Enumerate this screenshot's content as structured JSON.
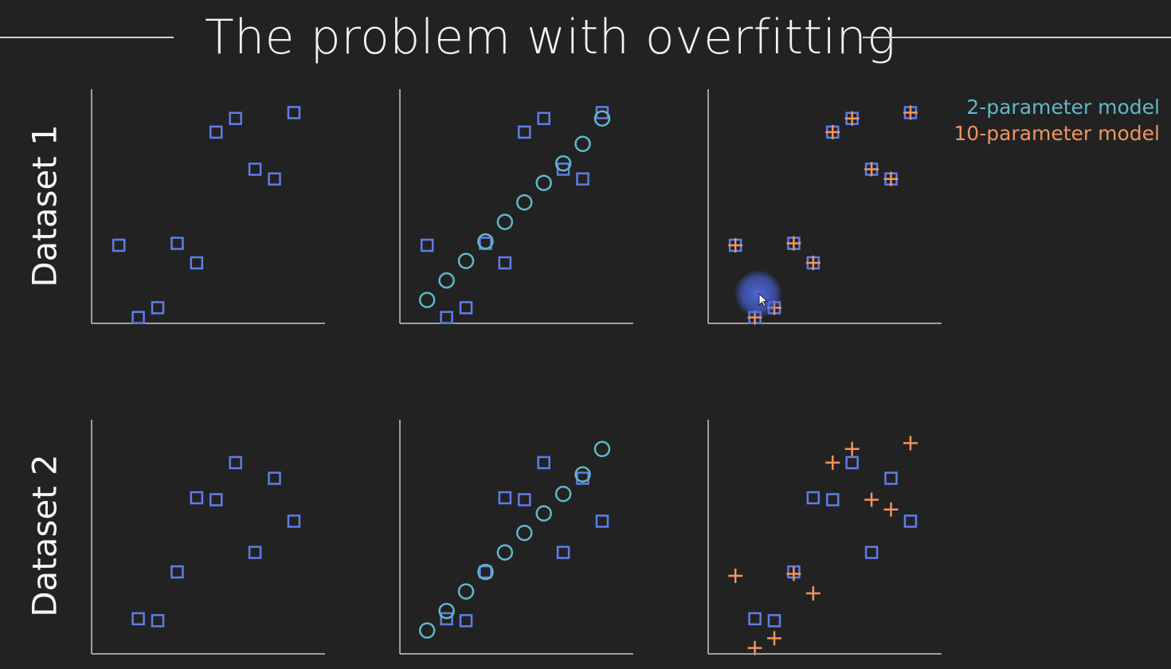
{
  "slide": {
    "title": "The problem with overfitting",
    "row_labels": [
      "Dataset 1",
      "Dataset 2"
    ],
    "legend": [
      {
        "label": "2-parameter model",
        "color": "#5fb8c8"
      },
      {
        "label": "10-parameter model",
        "color": "#f0955e"
      }
    ]
  },
  "colors": {
    "data_squares": "#5f7de8",
    "model_2_param": "#5fb8c8",
    "model_10_param": "#f0955e",
    "axes": "#c8c8c8"
  },
  "chart_data": [
    {
      "type": "scatter",
      "dataset": "Dataset 1",
      "panel": "data",
      "xlim": [
        0,
        12
      ],
      "ylim": [
        0,
        12
      ],
      "grid": false,
      "series": [
        {
          "marker": "square",
          "points": [
            [
              1.4,
              4.0
            ],
            [
              2.4,
              0.3
            ],
            [
              3.4,
              0.8
            ],
            [
              4.4,
              4.1
            ],
            [
              5.4,
              3.1
            ],
            [
              6.4,
              9.8
            ],
            [
              7.4,
              10.5
            ],
            [
              8.4,
              7.9
            ],
            [
              9.4,
              7.4
            ],
            [
              10.4,
              10.8
            ]
          ]
        }
      ]
    },
    {
      "type": "scatter",
      "dataset": "Dataset 1",
      "panel": "2-parameter fit",
      "xlim": [
        0,
        12
      ],
      "ylim": [
        0,
        12
      ],
      "grid": false,
      "series": [
        {
          "marker": "square",
          "points": [
            [
              1.4,
              4.0
            ],
            [
              2.4,
              0.3
            ],
            [
              3.4,
              0.8
            ],
            [
              4.4,
              4.1
            ],
            [
              5.4,
              3.1
            ],
            [
              6.4,
              9.8
            ],
            [
              7.4,
              10.5
            ],
            [
              8.4,
              7.9
            ],
            [
              9.4,
              7.4
            ],
            [
              10.4,
              10.8
            ]
          ]
        },
        {
          "marker": "circle",
          "points": [
            [
              1.4,
              1.2
            ],
            [
              2.4,
              2.2
            ],
            [
              3.4,
              3.2
            ],
            [
              4.4,
              4.2
            ],
            [
              5.4,
              5.2
            ],
            [
              6.4,
              6.2
            ],
            [
              7.4,
              7.2
            ],
            [
              8.4,
              8.2
            ],
            [
              9.4,
              9.2
            ],
            [
              10.4,
              10.5
            ]
          ]
        }
      ]
    },
    {
      "type": "scatter",
      "dataset": "Dataset 1",
      "panel": "10-parameter fit",
      "xlim": [
        0,
        12
      ],
      "ylim": [
        0,
        12
      ],
      "grid": false,
      "series": [
        {
          "marker": "square",
          "points": [
            [
              1.4,
              4.0
            ],
            [
              2.4,
              0.3
            ],
            [
              3.4,
              0.8
            ],
            [
              4.4,
              4.1
            ],
            [
              5.4,
              3.1
            ],
            [
              6.4,
              9.8
            ],
            [
              7.4,
              10.5
            ],
            [
              8.4,
              7.9
            ],
            [
              9.4,
              7.4
            ],
            [
              10.4,
              10.8
            ]
          ]
        },
        {
          "marker": "plus",
          "points": [
            [
              1.4,
              4.0
            ],
            [
              2.4,
              0.3
            ],
            [
              3.4,
              0.8
            ],
            [
              4.4,
              4.1
            ],
            [
              5.4,
              3.1
            ],
            [
              6.4,
              9.8
            ],
            [
              7.4,
              10.5
            ],
            [
              8.4,
              7.9
            ],
            [
              9.4,
              7.4
            ],
            [
              10.4,
              10.8
            ]
          ]
        }
      ]
    },
    {
      "type": "scatter",
      "dataset": "Dataset 2",
      "panel": "data",
      "xlim": [
        0,
        12
      ],
      "ylim": [
        0,
        12
      ],
      "grid": false,
      "series": [
        {
          "marker": "square",
          "points": [
            [
              2.4,
              1.8
            ],
            [
              3.4,
              1.7
            ],
            [
              4.4,
              4.2
            ],
            [
              5.4,
              8.0
            ],
            [
              6.4,
              7.9
            ],
            [
              7.4,
              9.8
            ],
            [
              8.4,
              5.2
            ],
            [
              9.4,
              9.0
            ],
            [
              10.4,
              6.8
            ]
          ]
        }
      ]
    },
    {
      "type": "scatter",
      "dataset": "Dataset 2",
      "panel": "2-parameter fit",
      "xlim": [
        0,
        12
      ],
      "ylim": [
        0,
        12
      ],
      "grid": false,
      "series": [
        {
          "marker": "square",
          "points": [
            [
              2.4,
              1.8
            ],
            [
              3.4,
              1.7
            ],
            [
              4.4,
              4.2
            ],
            [
              5.4,
              8.0
            ],
            [
              6.4,
              7.9
            ],
            [
              7.4,
              9.8
            ],
            [
              8.4,
              5.2
            ],
            [
              9.4,
              9.0
            ],
            [
              10.4,
              6.8
            ]
          ]
        },
        {
          "marker": "circle",
          "points": [
            [
              1.4,
              1.2
            ],
            [
              2.4,
              2.2
            ],
            [
              3.4,
              3.2
            ],
            [
              4.4,
              4.2
            ],
            [
              5.4,
              5.2
            ],
            [
              6.4,
              6.2
            ],
            [
              7.4,
              7.2
            ],
            [
              8.4,
              8.2
            ],
            [
              9.4,
              9.2
            ],
            [
              10.4,
              10.5
            ]
          ]
        }
      ]
    },
    {
      "type": "scatter",
      "dataset": "Dataset 2",
      "panel": "10-parameter fit",
      "xlim": [
        0,
        12
      ],
      "ylim": [
        0,
        12
      ],
      "grid": false,
      "series": [
        {
          "marker": "square",
          "points": [
            [
              2.4,
              1.8
            ],
            [
              3.4,
              1.7
            ],
            [
              4.4,
              4.2
            ],
            [
              5.4,
              8.0
            ],
            [
              6.4,
              7.9
            ],
            [
              7.4,
              9.8
            ],
            [
              8.4,
              5.2
            ],
            [
              9.4,
              9.0
            ],
            [
              10.4,
              6.8
            ]
          ]
        },
        {
          "marker": "plus",
          "points": [
            [
              1.4,
              4.0
            ],
            [
              2.4,
              0.3
            ],
            [
              3.4,
              0.8
            ],
            [
              4.4,
              4.1
            ],
            [
              5.4,
              3.1
            ],
            [
              6.4,
              9.8
            ],
            [
              7.4,
              10.5
            ],
            [
              8.4,
              7.9
            ],
            [
              9.4,
              7.4
            ],
            [
              10.4,
              10.8
            ]
          ]
        }
      ]
    }
  ]
}
